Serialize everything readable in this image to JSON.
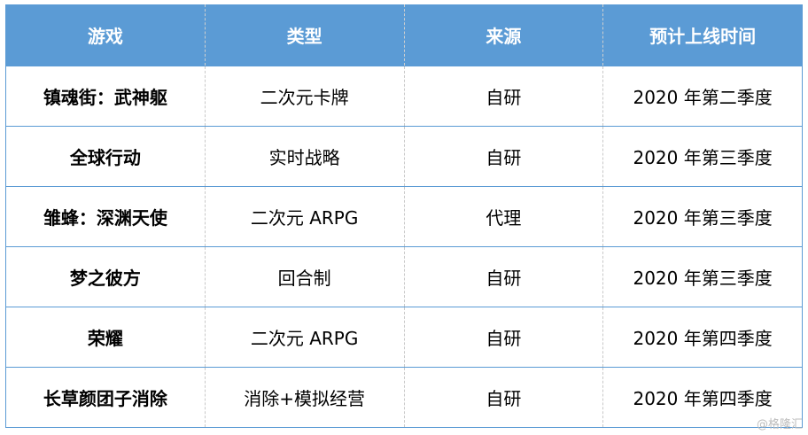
{
  "header": [
    "游戏",
    "类型",
    "来源",
    "预计上线时间"
  ],
  "rows": [
    [
      "镇魂街：武神躯",
      "二次元卡牌",
      "自研",
      "2020 年第二季度"
    ],
    [
      "全球行动",
      "实时战略",
      "自研",
      "2020 年第三季度"
    ],
    [
      "雏蜂：深渊天使",
      "二次元 ARPG",
      "代理",
      "2020 年第三季度"
    ],
    [
      "梦之彼方",
      "回合制",
      "自研",
      "2020 年第三季度"
    ],
    [
      "荣耀",
      "二次元 ARPG",
      "自研",
      "2020 年第四季度"
    ],
    [
      "长草颜团子消除",
      "消除+模拟经营",
      "自研",
      "2020 年第四季度"
    ]
  ],
  "watermark": "@格隆汇",
  "colors": {
    "header_bg": "#5b9bd5",
    "border": "#5b9bd5"
  }
}
